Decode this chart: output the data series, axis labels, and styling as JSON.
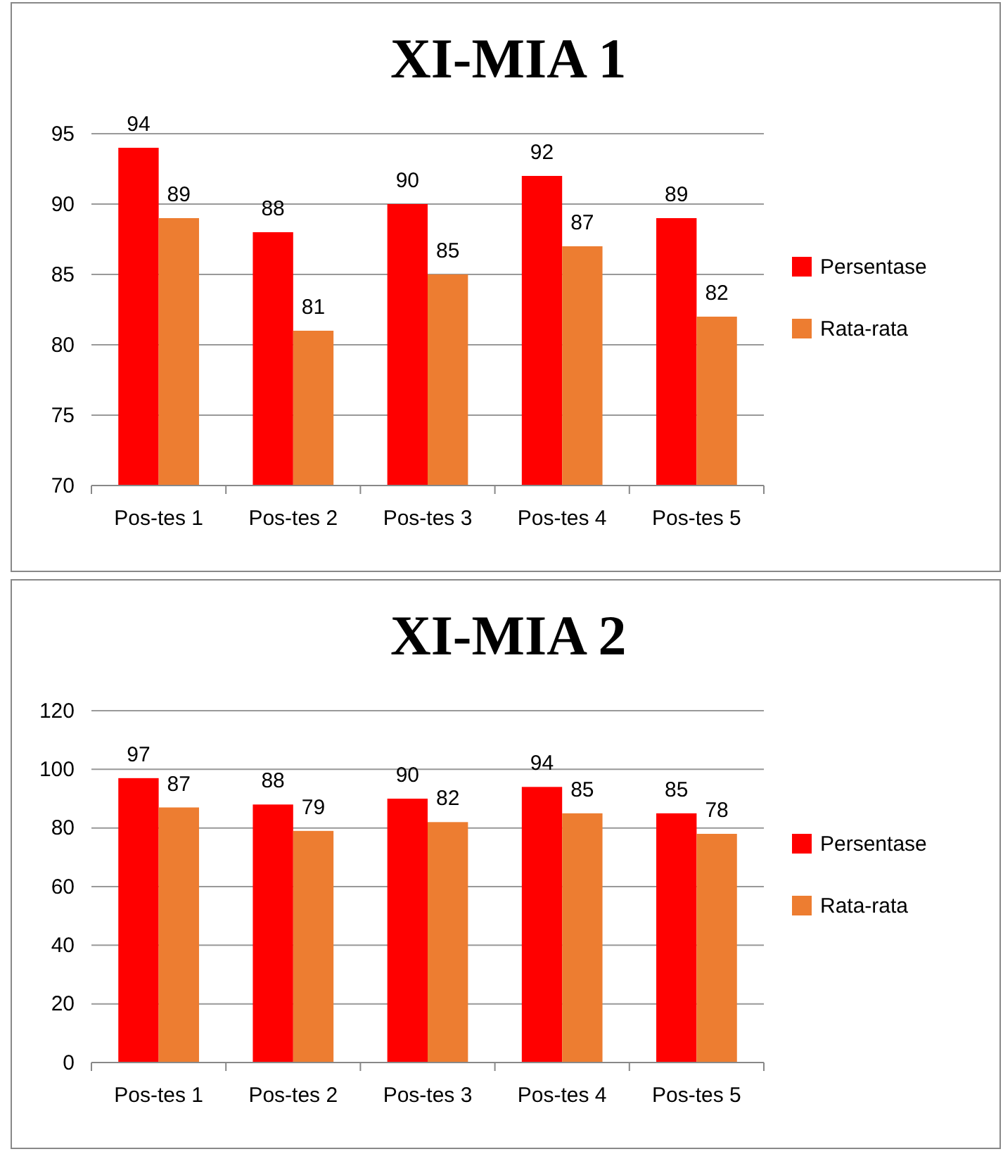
{
  "chart_data": [
    {
      "type": "bar",
      "title": "XI-MIA 1",
      "categories": [
        "Pos-tes 1",
        "Pos-tes 2",
        "Pos-tes 3",
        "Pos-tes 4",
        "Pos-tes 5"
      ],
      "series": [
        {
          "name": "Persentase",
          "color": "#ff0000",
          "values": [
            94,
            88,
            90,
            92,
            89
          ]
        },
        {
          "name": "Rata-rata",
          "color": "#ed7d31",
          "values": [
            89,
            81,
            85,
            87,
            82
          ]
        }
      ],
      "ylim": [
        70,
        95
      ],
      "yticks": [
        70,
        75,
        80,
        85,
        90,
        95
      ],
      "grid": "y",
      "legend": "right",
      "data_labels": true
    },
    {
      "type": "bar",
      "title": "XI-MIA 2",
      "categories": [
        "Pos-tes 1",
        "Pos-tes 2",
        "Pos-tes 3",
        "Pos-tes 4",
        "Pos-tes 5"
      ],
      "series": [
        {
          "name": "Persentase",
          "color": "#ff0000",
          "values": [
            97,
            88,
            90,
            94,
            85
          ]
        },
        {
          "name": "Rata-rata",
          "color": "#ed7d31",
          "values": [
            87,
            79,
            82,
            85,
            78
          ]
        }
      ],
      "ylim": [
        0,
        120
      ],
      "yticks": [
        0,
        20,
        40,
        60,
        80,
        100,
        120
      ],
      "grid": "y",
      "legend": "right",
      "data_labels": true
    }
  ]
}
